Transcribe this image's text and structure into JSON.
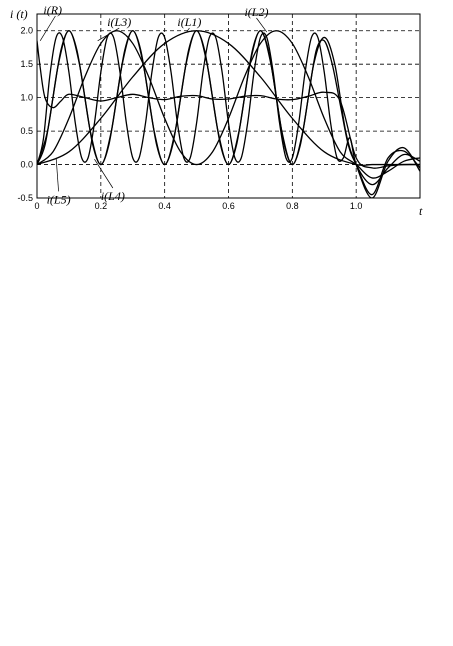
{
  "chart_data": {
    "type": "line",
    "xlabel": "t",
    "ylabel": "i (t)",
    "xlim": [
      0,
      1.2
    ],
    "ylim": [
      -0.5,
      2.25
    ],
    "x_ticks": [
      "0",
      "0.2",
      "0.4",
      "0.6",
      "0.8",
      "1.0"
    ],
    "x_tick_values": [
      0,
      0.2,
      0.4,
      0.6,
      0.8,
      1.0
    ],
    "y_ticks": [
      "-0.5",
      "0.0",
      "0.5",
      "1.0",
      "1.5",
      "2.0"
    ],
    "y_tick_values": [
      -0.5,
      0.0,
      0.5,
      1.0,
      1.5,
      2.0
    ],
    "grid": true,
    "series": [
      {
        "name": "i(L1)",
        "x": [
          0,
          0.1,
          0.2,
          0.3,
          0.4,
          0.5,
          0.6,
          0.7,
          0.8,
          0.9,
          1.0,
          1.05,
          1.1,
          1.15,
          1.2
        ],
        "values": [
          0,
          0.19,
          0.69,
          1.31,
          1.81,
          2.0,
          1.81,
          1.31,
          0.69,
          0.19,
          0.0,
          0.0,
          0.0,
          0.0,
          0.0
        ]
      },
      {
        "name": "i(L2)",
        "x": [
          0,
          0.05,
          0.1,
          0.15,
          0.2,
          0.25,
          0.3,
          0.35,
          0.4,
          0.45,
          0.5,
          0.55,
          0.6,
          0.65,
          0.7,
          0.75,
          0.8,
          0.85,
          0.9,
          0.95,
          1.0,
          1.05,
          1.1,
          1.15,
          1.2
        ],
        "values": [
          0.0,
          0.19,
          0.69,
          1.31,
          1.81,
          2.0,
          1.81,
          1.31,
          0.69,
          0.19,
          0.0,
          0.19,
          0.69,
          1.31,
          1.81,
          2.0,
          1.81,
          1.31,
          0.69,
          0.19,
          0.0,
          -0.2,
          -0.1,
          0.05,
          0.1
        ]
      },
      {
        "name": "i(L3)",
        "x": [
          0,
          0.033,
          0.067,
          0.1,
          0.133,
          0.167,
          0.2,
          0.233,
          0.267,
          0.3,
          0.333,
          0.367,
          0.4,
          0.433,
          0.467,
          0.5,
          0.533,
          0.567,
          0.6,
          0.633,
          0.667,
          0.7,
          0.733,
          0.767,
          0.8,
          0.833,
          0.867,
          0.9,
          0.933,
          0.967,
          1.0,
          1.05,
          1.1,
          1.15,
          1.2
        ],
        "values": [
          0.0,
          0.5,
          1.5,
          2.0,
          1.5,
          0.5,
          0.0,
          0.5,
          1.5,
          2.0,
          1.5,
          0.5,
          0.0,
          0.5,
          1.5,
          2.0,
          1.5,
          0.5,
          0.0,
          0.5,
          1.5,
          2.0,
          1.5,
          0.5,
          0.0,
          0.5,
          1.5,
          1.9,
          1.5,
          0.5,
          0.0,
          -0.3,
          -0.05,
          0.15,
          0.05
        ]
      },
      {
        "name": "i(L4)",
        "x": [
          0,
          0.025,
          0.05,
          0.075,
          0.1,
          0.125,
          0.15,
          0.175,
          0.2,
          0.225,
          0.25,
          0.275,
          0.3,
          0.325,
          0.35,
          0.375,
          0.4,
          0.425,
          0.45,
          0.475,
          0.5,
          0.525,
          0.55,
          0.575,
          0.6,
          0.625,
          0.65,
          0.675,
          0.7,
          0.725,
          0.75,
          0.775,
          0.8,
          0.825,
          0.85,
          0.875,
          0.9,
          0.925,
          0.95,
          0.975,
          1.0,
          1.05,
          1.1,
          1.15,
          1.2
        ],
        "values": [
          0.0,
          0.29,
          1.0,
          1.71,
          2.0,
          1.71,
          1.0,
          0.29,
          0.0,
          0.29,
          1.0,
          1.71,
          2.0,
          1.71,
          1.0,
          0.29,
          0.0,
          0.29,
          1.0,
          1.71,
          2.0,
          1.71,
          1.0,
          0.29,
          0.0,
          0.29,
          1.0,
          1.71,
          2.0,
          1.71,
          1.0,
          0.29,
          0.0,
          0.29,
          1.0,
          1.71,
          1.85,
          1.5,
          0.9,
          0.3,
          0.0,
          -0.45,
          0.1,
          0.2,
          -0.05
        ]
      },
      {
        "name": "i(L5)",
        "x": [
          0,
          0.02,
          0.04,
          0.06,
          0.08,
          0.1,
          0.12,
          0.14,
          0.16,
          0.18,
          0.2,
          0.22,
          0.24,
          0.26,
          0.28,
          0.3,
          0.32,
          0.34,
          0.36,
          0.38,
          0.4,
          0.42,
          0.44,
          0.46,
          0.48,
          0.5,
          0.52,
          0.54,
          0.56,
          0.58,
          0.6,
          0.62,
          0.64,
          0.66,
          0.68,
          0.7,
          0.72,
          0.74,
          0.76,
          0.78,
          0.8,
          0.82,
          0.84,
          0.86,
          0.88,
          0.9,
          0.92,
          0.94,
          0.96,
          0.98,
          1.0,
          1.05,
          1.1,
          1.15,
          1.2
        ],
        "values": [
          0.0,
          0.38,
          1.32,
          1.9,
          1.9,
          1.38,
          0.62,
          0.1,
          0.1,
          0.62,
          1.38,
          1.9,
          1.9,
          1.38,
          0.62,
          0.1,
          0.1,
          0.62,
          1.38,
          1.9,
          1.9,
          1.38,
          0.62,
          0.1,
          0.1,
          0.62,
          1.38,
          1.9,
          1.9,
          1.38,
          0.62,
          0.1,
          0.1,
          0.62,
          1.38,
          1.9,
          1.9,
          1.38,
          0.62,
          0.1,
          0.1,
          0.62,
          1.38,
          1.9,
          1.9,
          1.38,
          0.62,
          0.1,
          0.1,
          0.4,
          0.0,
          -0.5,
          0.05,
          0.25,
          -0.1
        ]
      },
      {
        "name": "i(R)",
        "x": [
          0,
          0.01,
          0.025,
          0.05,
          0.075,
          0.1,
          0.15,
          0.2,
          0.25,
          0.3,
          0.35,
          0.4,
          0.45,
          0.5,
          0.55,
          0.6,
          0.65,
          0.7,
          0.75,
          0.8,
          0.85,
          0.9,
          0.95,
          1.0,
          1.05,
          1.1,
          1.15,
          1.2
        ],
        "values": [
          1.85,
          1.45,
          1.0,
          0.85,
          0.95,
          1.05,
          1.0,
          0.95,
          1.0,
          1.05,
          1.0,
          0.97,
          1.02,
          1.03,
          0.98,
          0.98,
          1.02,
          1.03,
          0.98,
          0.97,
          1.02,
          1.08,
          0.95,
          0.1,
          -0.05,
          -0.02,
          0.0,
          0.0
        ]
      }
    ],
    "annotations": [
      {
        "text": "i(R)",
        "x": 0.02,
        "y": 2.25,
        "tx": 0.01,
        "ty": 1.85
      },
      {
        "text": "i(L3)",
        "x": 0.22,
        "y": 2.07,
        "tx": 0.19,
        "ty": 1.85
      },
      {
        "text": "i(L1)",
        "x": 0.44,
        "y": 2.07,
        "tx": 0.47,
        "ty": 1.99
      },
      {
        "text": "i(L2)",
        "x": 0.65,
        "y": 2.22,
        "tx": 0.72,
        "ty": 1.98
      },
      {
        "text": "i(L5)",
        "x": 0.03,
        "y": -0.55,
        "tx": 0.06,
        "ty": 0.1
      },
      {
        "text": "i(L4)",
        "x": 0.2,
        "y": -0.5,
        "tx": 0.18,
        "ty": 0.08
      }
    ]
  }
}
